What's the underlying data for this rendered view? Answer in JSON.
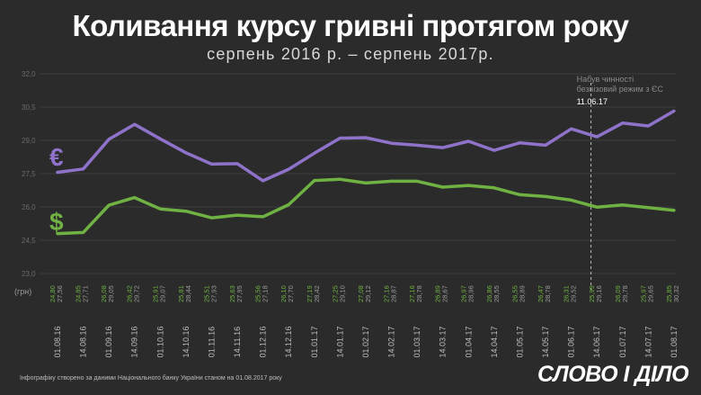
{
  "title": "Коливання курсу гривні протягом року",
  "subtitle": "серпень 2016 р. – серпень 2017р.",
  "footer": "Інфографіку створено за даними Національного банку України станом на 01.08.2017 року",
  "logo": "СЛОВО І ДІЛО",
  "unit_label": "(грн)",
  "colors": {
    "background": "#2b2b2b",
    "euro": "#8f72c9",
    "dollar": "#6fb142",
    "grid": "#3d3d3d",
    "tick_text": "#6a6a6a",
    "date_text": "#bdbdbd",
    "label_text": "#9a9a9a",
    "annotation_text": "#8a8a8a"
  },
  "chart_data": {
    "type": "line",
    "title": "Коливання курсу гривні протягом року",
    "ylabel": "(грн)",
    "ylim": [
      23.0,
      32.0
    ],
    "yticks": [
      "32,0",
      "30,5",
      "29,0",
      "27,5",
      "26,0",
      "24,5",
      "23,0"
    ],
    "ytick_values": [
      32.0,
      30.5,
      29.0,
      27.5,
      26.0,
      24.5,
      23.0
    ],
    "x": [
      "01.08.16",
      "14.08.16",
      "01.09.16",
      "14.09.16",
      "01.10.16",
      "14.10.16",
      "01.11.16",
      "14.11.16",
      "01.12.16",
      "14.12.16",
      "01.01.17",
      "14.01.17",
      "01.02.17",
      "14.02.17",
      "01.03.17",
      "14.03.17",
      "01.04.17",
      "14.04.17",
      "01.05.17",
      "14.05.17",
      "01.06.17",
      "14.06.17",
      "01.07.17",
      "14.07.17",
      "01.08.17"
    ],
    "series": [
      {
        "name": "€",
        "values": [
          27.56,
          27.71,
          29.05,
          29.72,
          29.07,
          28.44,
          27.93,
          27.95,
          27.18,
          27.7,
          28.42,
          29.1,
          29.12,
          28.87,
          28.78,
          28.67,
          28.96,
          28.55,
          28.89,
          28.78,
          29.52,
          29.16,
          29.78,
          29.65,
          30.32
        ],
        "labels": [
          "27,56",
          "27,71",
          "29,05",
          "29,72",
          "29,07",
          "28,44",
          "27,93",
          "27,95",
          "27,18",
          "27,70",
          "28,42",
          "29,10",
          "29,12",
          "28,87",
          "28,78",
          "28,67",
          "28,96",
          "28,55",
          "28,89",
          "28,78",
          "29,52",
          "29,16",
          "29,78",
          "29,65",
          "30,32"
        ]
      },
      {
        "name": "$",
        "values": [
          24.8,
          24.85,
          26.08,
          26.42,
          25.91,
          25.81,
          25.51,
          25.63,
          25.56,
          26.1,
          27.19,
          27.25,
          27.08,
          27.16,
          27.16,
          26.89,
          26.97,
          26.86,
          26.55,
          26.47,
          26.31,
          25.99,
          26.09,
          25.97,
          25.85
        ],
        "labels": [
          "24,80",
          "24,85",
          "26,08",
          "26,42",
          "25,91",
          "25,81",
          "25,51",
          "25,63",
          "25,56",
          "26,10",
          "27,19",
          "27,25",
          "27,08",
          "27,16",
          "27,16",
          "26,89",
          "26,97",
          "26,86",
          "26,55",
          "26,47",
          "26,31",
          "25,99",
          "26,09",
          "25,97",
          "25,85"
        ]
      }
    ],
    "annotation": {
      "x": "11.06.17",
      "lines": [
        "Набув чинності",
        "безвізовий режим з ЄС"
      ],
      "date": "11.06.17"
    }
  }
}
